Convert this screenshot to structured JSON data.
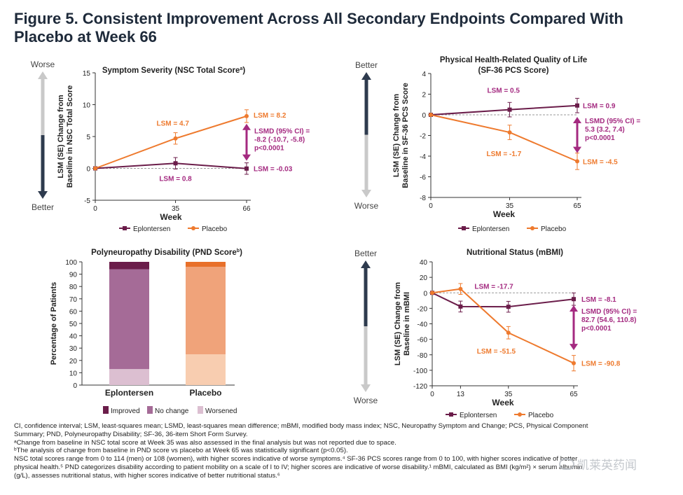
{
  "figure_title": "Figure 5. Consistent Improvement Across All Secondary Endpoints Compared With Placebo at Week 66",
  "colors": {
    "eplontersen": "#6b1d4a",
    "placebo": "#ee7a2e",
    "annotation": "#a42a80",
    "axis": "#333333"
  },
  "chart_data": [
    {
      "id": "nsc",
      "type": "line",
      "title": "Symptom Severity (NSC Total Score",
      "title_sup": "a",
      "title_close": ")",
      "xlabel": "Week",
      "ylabel": [
        "LSM (SE) Change from",
        "Baseline in NSC Total Score"
      ],
      "x_ticks": [
        0,
        35,
        66
      ],
      "y_ticks": [
        15,
        10,
        5,
        0,
        -5
      ],
      "xlim": [
        0,
        66
      ],
      "ylim": [
        -5,
        15
      ],
      "direction_top": "Worse",
      "direction_bottom": "Better",
      "series": [
        {
          "name": "Eplontersen",
          "x": [
            0,
            35,
            66
          ],
          "y": [
            0,
            0.8,
            -0.03
          ],
          "err": [
            0,
            0.9,
            0.9
          ]
        },
        {
          "name": "Placebo",
          "x": [
            0,
            35,
            66
          ],
          "y": [
            0,
            4.7,
            8.2
          ],
          "err": [
            0,
            0.9,
            1.0
          ]
        }
      ],
      "labels": {
        "placebo_35": "LSM = 4.7",
        "placebo_end": "LSM = 8.2",
        "eplo_end": "LSM = -0.03",
        "eplo_35": "LSM = 0.8"
      },
      "lsmd": [
        "LSMD (95% CI) =",
        "-8.2 (-10.7, -5.8)",
        "p<0.0001"
      ]
    },
    {
      "id": "sf36",
      "type": "line",
      "title": "Physical Health-Related Quality of Life",
      "title2": "(SF-36 PCS Score)",
      "xlabel": "Week",
      "ylabel": [
        "LSM (SE) Change from",
        "Baseline in SF-36 PCS Score"
      ],
      "x_ticks": [
        0,
        35,
        65
      ],
      "y_ticks": [
        4,
        2,
        0,
        -2,
        -4,
        -6,
        -8
      ],
      "xlim": [
        0,
        65
      ],
      "ylim": [
        -8,
        4
      ],
      "direction_top": "Better",
      "direction_bottom": "Worse",
      "series": [
        {
          "name": "Eplontersen",
          "x": [
            0,
            35,
            65
          ],
          "y": [
            0,
            0.5,
            0.9
          ],
          "err": [
            0,
            0.7,
            0.7
          ]
        },
        {
          "name": "Placebo",
          "x": [
            0,
            35,
            65
          ],
          "y": [
            0,
            -1.7,
            -4.5
          ],
          "err": [
            0,
            0.7,
            0.8
          ]
        }
      ],
      "labels": {
        "eplo_35": "LSM = 0.5",
        "eplo_end": "LSM = 0.9",
        "placebo_35": "LSM = -1.7",
        "placebo_end": "LSM = -4.5"
      },
      "lsmd": [
        "LSMD (95% CI) =",
        "5.3 (3.2, 7.4)",
        "p<0.0001"
      ]
    },
    {
      "id": "pnd",
      "type": "bar",
      "title": "Polyneuropathy Disability (PND Score",
      "title_sup": "b",
      "title_close": ")",
      "ylabel": "Percentage of Patients",
      "y_ticks": [
        100,
        90,
        80,
        70,
        60,
        50,
        40,
        30,
        20,
        10,
        0
      ],
      "ylim": [
        0,
        100
      ],
      "categories": [
        "Eplontersen",
        "Placebo"
      ],
      "series": [
        {
          "name": "Worsened",
          "values": [
            13,
            25
          ]
        },
        {
          "name": "No change",
          "values": [
            81,
            71
          ]
        },
        {
          "name": "Improved",
          "values": [
            6,
            4
          ]
        }
      ],
      "bar_colors": {
        "Eplontersen": [
          "#dcbfd1",
          "#a56b97",
          "#6b1d4a"
        ],
        "Placebo": [
          "#f8cdb0",
          "#f0a37a",
          "#e8702a"
        ]
      },
      "legend": [
        {
          "label": "Improved",
          "color": "#6b1d4a"
        },
        {
          "label": "No change",
          "color": "#a56b97"
        },
        {
          "label": "Worsened",
          "color": "#dcbfd1"
        }
      ]
    },
    {
      "id": "mbmi",
      "type": "line",
      "title": "Nutritional Status (mBMI)",
      "xlabel": "Week",
      "ylabel": [
        "LSM (SE) Change from",
        "Baseline in mBMI"
      ],
      "x_ticks": [
        0,
        13,
        35,
        65
      ],
      "y_ticks": [
        40,
        20,
        0,
        -20,
        -40,
        -60,
        -80,
        -100,
        -120
      ],
      "xlim": [
        0,
        65
      ],
      "ylim": [
        -120,
        40
      ],
      "direction_top": "Better",
      "direction_bottom": "Worse",
      "series": [
        {
          "name": "Eplontersen",
          "x": [
            0,
            13,
            35,
            65
          ],
          "y": [
            0,
            -17.7,
            -18,
            -8.1
          ],
          "err": [
            0,
            7,
            7,
            8
          ]
        },
        {
          "name": "Placebo",
          "x": [
            0,
            13,
            35,
            65
          ],
          "y": [
            0,
            5,
            -51.5,
            -90.8
          ],
          "err": [
            0,
            7,
            8,
            10
          ]
        }
      ],
      "labels": {
        "eplo_mid": "LSM = -17.7",
        "eplo_end": "LSM = -8.1",
        "placebo_35": "LSM = -51.5",
        "placebo_end": "LSM = -90.8"
      },
      "lsmd": [
        "LSMD (95% CI) =",
        "82.7 (54.6, 110.8)",
        "p<0.0001"
      ]
    }
  ],
  "legend_labels": {
    "eplontersen": "Eplontersen",
    "placebo": "Placebo"
  },
  "footnotes": [
    "CI, confidence interval; LSM, least-squares mean; LSMD, least-squares mean difference; mBMI, modified body mass index; NSC, Neuropathy Symptom and Change; PCS, Physical Component",
    "Summary; PND, Polyneuropathy Disability; SF-36, 36-item Short Form Survey.",
    "ᵃChange from baseline in NSC total score at Week 35 was also assessed in the final analysis but was not reported due to space.",
    "ᵇThe analysis of change from baseline in PND score vs placebo at Week 65 was statistically significant (p<0.05).",
    "NSC total scores range from 0 to 114 (men) or 108 (women), with higher scores indicative of worse symptoms.⁴ SF-36 PCS scores range from 0 to 100, with higher scores indicative of better",
    "physical health.⁵ PND categorizes disability according to patient mobility on a scale of I to IV; higher scores are indicative of worse disability.¹ mBMI, calculated as BMI (kg/m²) × serum albumin",
    "(g/L), assesses nutritional status, with higher scores indicative of better nutritional status.⁶"
  ],
  "watermark": "凯莱英药闻"
}
